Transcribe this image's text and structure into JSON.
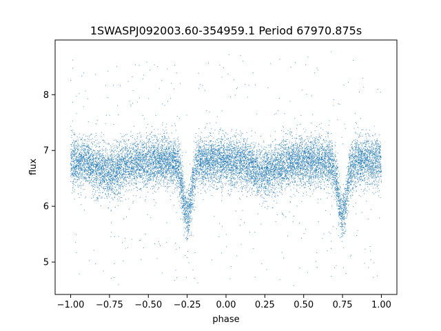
{
  "chart_data": {
    "type": "scatter",
    "title": "1SWASPJ092003.60-354959.1 Period 67970.875s",
    "xlabel": "phase",
    "ylabel": "flux",
    "xlim": [
      -1.1,
      1.1
    ],
    "ylim": [
      4.42,
      8.98
    ],
    "xticks": [
      -1.0,
      -0.75,
      -0.5,
      -0.25,
      0.0,
      0.25,
      0.5,
      0.75,
      1.0
    ],
    "xtick_labels": [
      "−1.00",
      "−0.75",
      "−0.50",
      "−0.25",
      "0.00",
      "0.25",
      "0.50",
      "0.75",
      "1.00"
    ],
    "yticks": [
      5,
      6,
      7,
      8
    ],
    "ytick_labels": [
      "5",
      "6",
      "7",
      "8"
    ],
    "grid": false,
    "legend": "none",
    "color": "#1f77b4",
    "model": {
      "description": "eclipsing binary light curve, baseline flux ~6.8, primary eclipse minima",
      "baseline_flux": 6.8,
      "eclipse_minima_phase": [
        -0.25,
        0.75
      ],
      "eclipse_min_flux": 5.85,
      "secondary_dips_phase": [
        -0.75,
        0.25
      ],
      "secondary_dip_flux": 6.6,
      "scatter_sigma": 0.22,
      "n_points": 14000
    }
  }
}
